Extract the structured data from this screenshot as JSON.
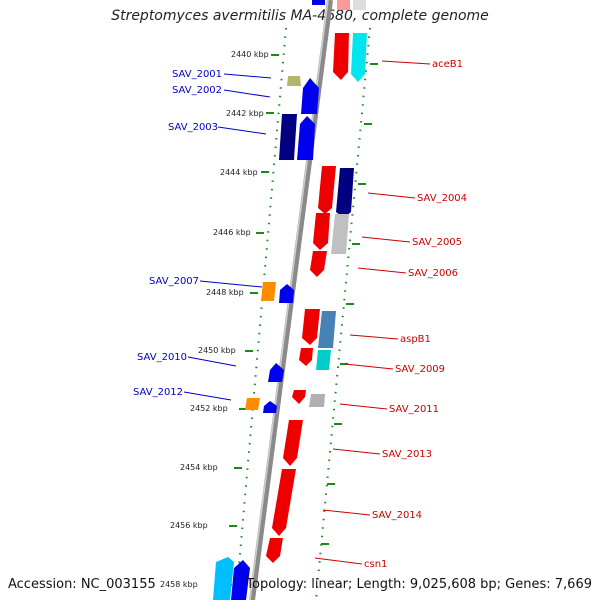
{
  "title": "Streptomyces avermitilis MA-4680, complete genome",
  "footer": {
    "accession": "Accession: NC_003155",
    "summary": "Topology: linear; Length: 9,025,608 bp; Genes: 7,669"
  },
  "colors": {
    "left_labels": "#0000cc",
    "right_labels": "#cc0000",
    "ticks": "#1a8a1a",
    "axis": "#888888"
  },
  "kbp_ticks": [
    {
      "label": "2440 kbp"
    },
    {
      "label": "2442 kbp"
    },
    {
      "label": "2444 kbp"
    },
    {
      "label": "2446 kbp"
    },
    {
      "label": "2448 kbp"
    },
    {
      "label": "2450 kbp"
    },
    {
      "label": "2452 kbp"
    },
    {
      "label": "2454 kbp"
    },
    {
      "label": "2456 kbp"
    },
    {
      "label": "2458 kbp"
    }
  ],
  "left_genes": [
    {
      "label": "SAV_2001"
    },
    {
      "label": "SAV_2002"
    },
    {
      "label": "SAV_2003"
    },
    {
      "label": "SAV_2007"
    },
    {
      "label": "SAV_2010"
    },
    {
      "label": "SAV_2012"
    }
  ],
  "right_genes": [
    {
      "label": "aceB1"
    },
    {
      "label": "SAV_2004"
    },
    {
      "label": "SAV_2005"
    },
    {
      "label": "SAV_2006"
    },
    {
      "label": "aspB1"
    },
    {
      "label": "SAV_2009"
    },
    {
      "label": "SAV_2011"
    },
    {
      "label": "SAV_2013"
    },
    {
      "label": "SAV_2014"
    },
    {
      "label": "csn1"
    }
  ]
}
